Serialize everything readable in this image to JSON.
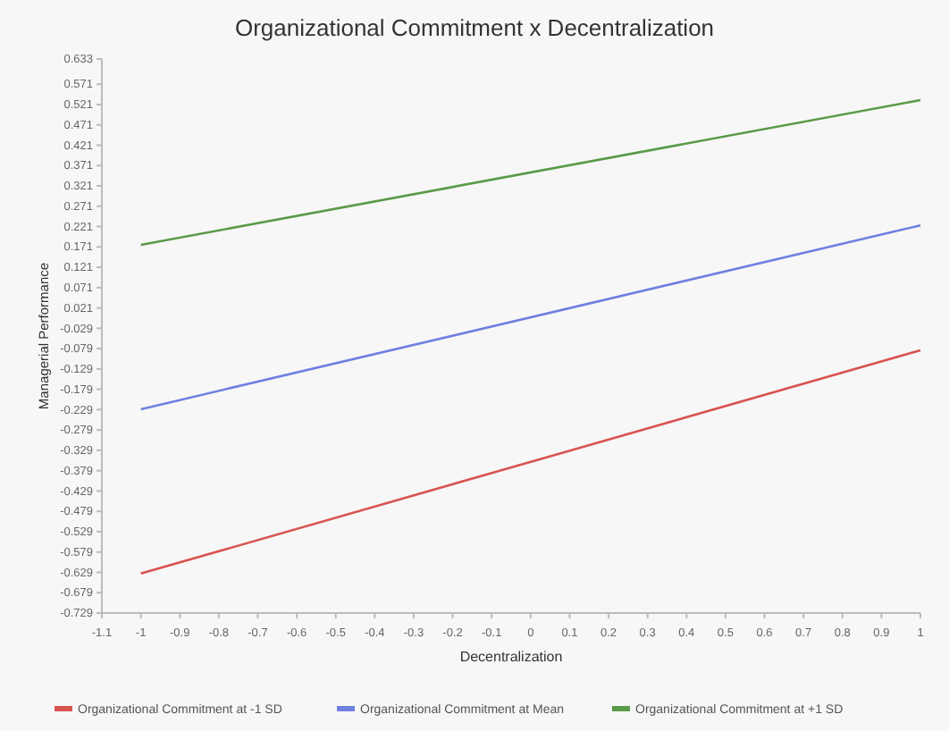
{
  "chart_data": {
    "type": "line",
    "title": "Organizational Commitment x Decentralization",
    "xlabel": "Decentralization",
    "ylabel": "Managerial Performance",
    "x": [
      -1,
      1
    ],
    "series": [
      {
        "name": "Organizational Commitment at -1 SD",
        "color": "#d9534f",
        "values": [
          -0.632,
          -0.083
        ]
      },
      {
        "name": "Organizational Commitment at Mean",
        "color": "#6f7fe0",
        "values": [
          -0.228,
          0.224
        ]
      },
      {
        "name": "Organizational Commitment at +1 SD",
        "color": "#5a9a4a",
        "values": [
          0.176,
          0.532
        ]
      }
    ],
    "xlim": [
      -1.1,
      1
    ],
    "xticks": [
      {
        "value": -1.1,
        "label": "-1.1"
      },
      -1,
      {
        "value": -0.9,
        "label": "-0.9"
      },
      {
        "value": -0.8,
        "label": "-0.8"
      },
      {
        "value": -0.7,
        "label": "-0.7"
      },
      {
        "value": -0.6,
        "label": "-0.6"
      },
      {
        "value": -0.5,
        "label": "-0.5"
      },
      {
        "value": -0.4,
        "label": "-0.4"
      },
      {
        "value": -0.3,
        "label": "-0.3"
      },
      {
        "value": -0.2,
        "label": "-0.2"
      },
      {
        "value": -0.1,
        "label": "-0.1"
      },
      0,
      0.1,
      0.2,
      0.3,
      0.4,
      0.5,
      0.6,
      0.7,
      0.8,
      0.9,
      1
    ],
    "ylim": [
      -0.729,
      0.633
    ],
    "yticks": [
      -0.729,
      -0.679,
      -0.629,
      -0.579,
      -0.529,
      -0.479,
      -0.429,
      -0.379,
      -0.329,
      -0.279,
      -0.229,
      -0.179,
      -0.129,
      -0.079,
      -0.029,
      0.021,
      0.071,
      0.121,
      0.171,
      0.221,
      0.271,
      0.321,
      0.371,
      0.421,
      0.471,
      0.521,
      0.571,
      0.633
    ],
    "grid": false,
    "legend": "bottom",
    "marker": "none",
    "line_style": "solid"
  }
}
